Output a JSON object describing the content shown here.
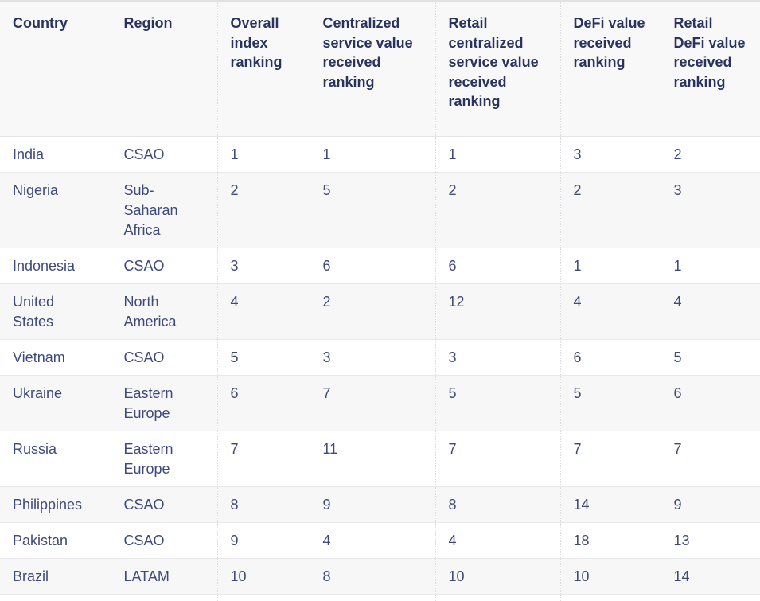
{
  "colors": {
    "header_text": "#28335f",
    "body_text": "#3e4a79",
    "row_alt_background": "#f7f7f8",
    "header_background": "#f8f8f9",
    "top_border": "#e1e1e3",
    "row_separator": "#e9e9eb",
    "column_separator_dotted": "#dcdcdf"
  },
  "chart_data": {
    "type": "table",
    "columns": [
      "Country",
      "Region",
      "Overall index ranking",
      "Centralized service value received ranking",
      "Retail centralized service value received ranking",
      "DeFi value received ranking",
      "Retail DeFi value received ranking"
    ],
    "rows": [
      [
        "India",
        "CSAO",
        1,
        1,
        1,
        3,
        2
      ],
      [
        "Nigeria",
        "Sub-Saharan Africa",
        2,
        5,
        2,
        2,
        3
      ],
      [
        "Indonesia",
        "CSAO",
        3,
        6,
        6,
        1,
        1
      ],
      [
        "United States",
        "North America",
        4,
        2,
        12,
        4,
        4
      ],
      [
        "Vietnam",
        "CSAO",
        5,
        3,
        3,
        6,
        5
      ],
      [
        "Ukraine",
        "Eastern Europe",
        6,
        7,
        5,
        5,
        6
      ],
      [
        "Russia",
        "Eastern Europe",
        7,
        11,
        7,
        7,
        7
      ],
      [
        "Philippines",
        "CSAO",
        8,
        9,
        8,
        14,
        9
      ],
      [
        "Pakistan",
        "CSAO",
        9,
        4,
        4,
        18,
        13
      ],
      [
        "Brazil",
        "LATAM",
        10,
        8,
        10,
        10,
        14
      ]
    ]
  }
}
